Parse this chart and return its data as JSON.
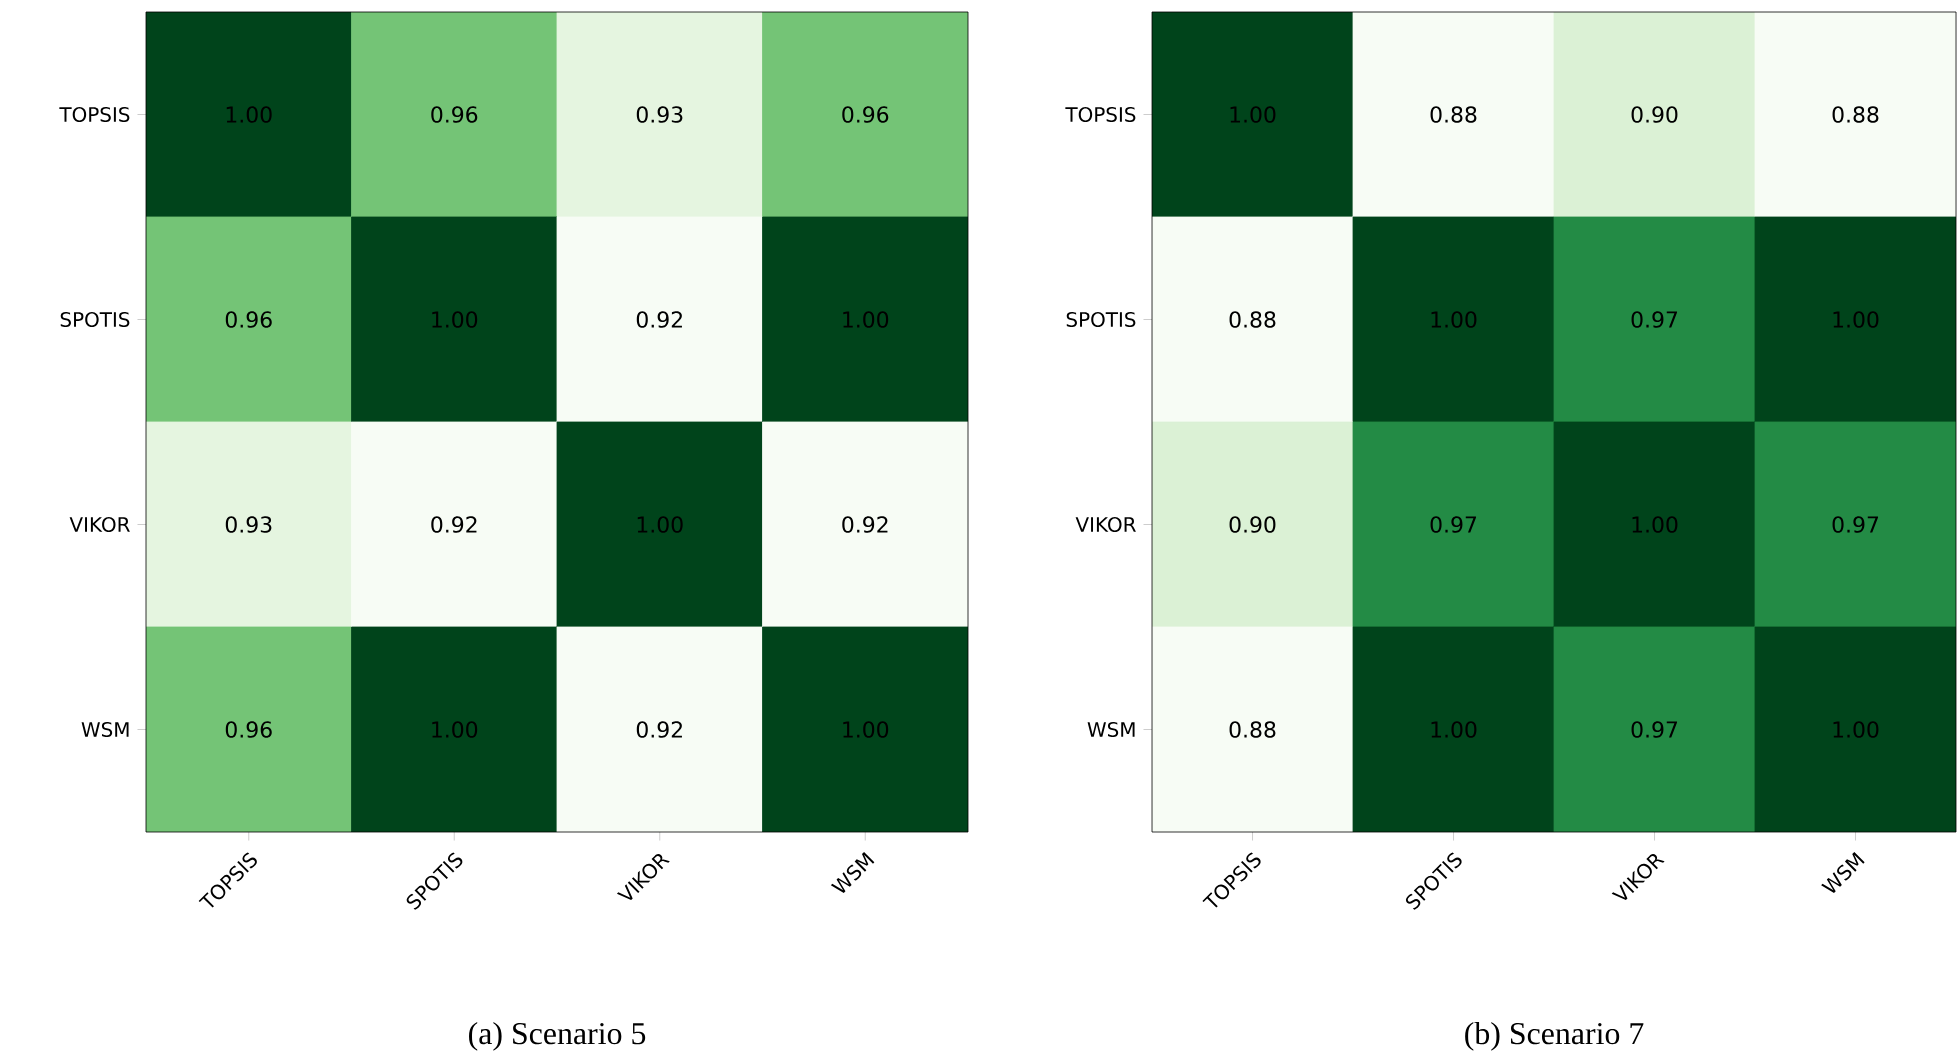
{
  "chart_data": [
    {
      "type": "heatmap",
      "title": "(a) Scenario 5",
      "categories": [
        "TOPSIS",
        "SPOTIS",
        "VIKOR",
        "WSM"
      ],
      "y_categories": [
        "TOPSIS",
        "SPOTIS",
        "VIKOR",
        "WSM"
      ],
      "cells": [
        [
          1.0,
          0.96,
          0.93,
          0.96
        ],
        [
          0.96,
          1.0,
          0.92,
          1.0
        ],
        [
          0.93,
          0.92,
          1.0,
          0.92
        ],
        [
          0.96,
          1.0,
          0.92,
          1.0
        ]
      ],
      "cell_labels": [
        [
          "1.00",
          "0.96",
          "0.93",
          "0.96"
        ],
        [
          "0.96",
          "1.00",
          "0.92",
          "1.00"
        ],
        [
          "0.93",
          "0.92",
          "1.00",
          "0.92"
        ],
        [
          "0.96",
          "1.00",
          "0.92",
          "1.00"
        ]
      ]
    },
    {
      "type": "heatmap",
      "title": "(b) Scenario 7",
      "categories": [
        "TOPSIS",
        "SPOTIS",
        "VIKOR",
        "WSM"
      ],
      "y_categories": [
        "TOPSIS",
        "SPOTIS",
        "VIKOR",
        "WSM"
      ],
      "cells": [
        [
          1.0,
          0.88,
          0.9,
          0.88
        ],
        [
          0.88,
          1.0,
          0.97,
          1.0
        ],
        [
          0.9,
          0.97,
          1.0,
          0.97
        ],
        [
          0.88,
          1.0,
          0.97,
          1.0
        ]
      ],
      "cell_labels": [
        [
          "1.00",
          "0.88",
          "0.90",
          "0.88"
        ],
        [
          "0.88",
          "1.00",
          "0.97",
          "1.00"
        ],
        [
          "0.90",
          "0.97",
          "1.00",
          "0.97"
        ],
        [
          "0.88",
          "1.00",
          "0.97",
          "1.00"
        ]
      ]
    }
  ]
}
